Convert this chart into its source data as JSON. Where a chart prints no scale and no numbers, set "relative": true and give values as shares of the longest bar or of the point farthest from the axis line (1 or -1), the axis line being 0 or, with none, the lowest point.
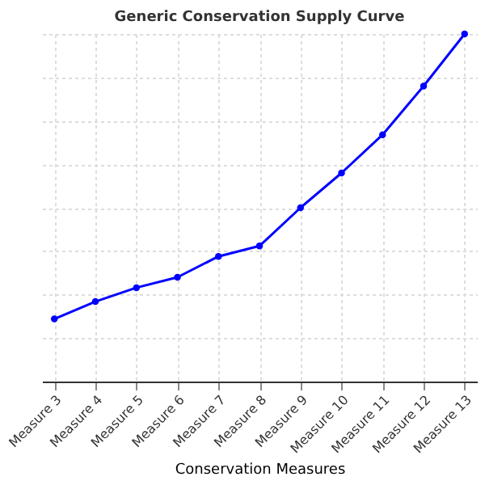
{
  "chart_data": {
    "type": "line",
    "title": "Generic Conservation Supply Curve",
    "xlabel": "Conservation Measures",
    "categories": [
      "Measure 3",
      "Measure 4",
      "Measure 5",
      "Measure 6",
      "Measure 7",
      "Measure 8",
      "Measure 9",
      "Measure 10",
      "Measure 11",
      "Measure 12",
      "Measure 13"
    ],
    "series": [
      {
        "color": "#0000ff",
        "values": [
          0.18,
          0.23,
          0.27,
          0.3,
          0.36,
          0.39,
          0.5,
          0.6,
          0.71,
          0.85,
          1.0
        ]
      }
    ],
    "relative": true,
    "grid": true,
    "marker": "circle",
    "line_style": "solid"
  }
}
